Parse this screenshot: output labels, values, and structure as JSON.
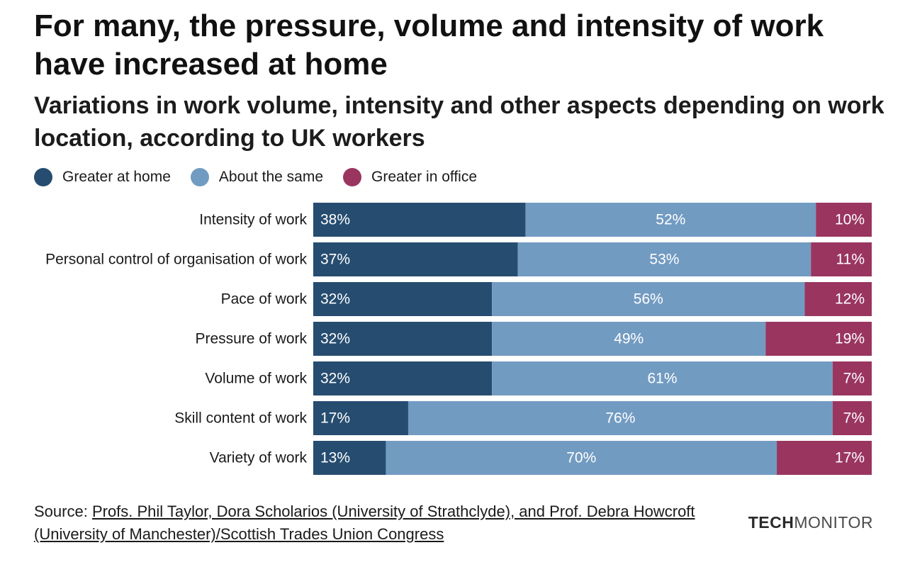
{
  "header": {
    "title": "For many, the pressure, volume and intensity of work have increased at home",
    "subtitle": "Variations in work volume, intensity and other aspects depending on work location, according to UK workers"
  },
  "legend": [
    {
      "label": "Greater at home",
      "color": "#264d70"
    },
    {
      "label": "About the same",
      "color": "#729bc2"
    },
    {
      "label": "Greater in office",
      "color": "#9a3560"
    }
  ],
  "chart_data": {
    "type": "bar",
    "orientation": "horizontal",
    "stacked": true,
    "normalized": true,
    "value_suffix": "%",
    "categories": [
      "Intensity of work",
      "Personal control of organisation of work",
      "Pace of work",
      "Pressure of work",
      "Volume of work",
      "Skill content of work",
      "Variety of work"
    ],
    "series": [
      {
        "name": "Greater at home",
        "color": "#264d70",
        "values": [
          38,
          37,
          32,
          32,
          32,
          17,
          13
        ]
      },
      {
        "name": "About the same",
        "color": "#729bc2",
        "values": [
          52,
          53,
          56,
          49,
          61,
          76,
          70
        ]
      },
      {
        "name": "Greater in office",
        "color": "#9a3560",
        "values": [
          10,
          11,
          12,
          19,
          7,
          7,
          17
        ]
      }
    ],
    "xlim": [
      0,
      100
    ],
    "grid": false,
    "legend_position": "top-left"
  },
  "footer": {
    "source_prefix": "Source: ",
    "source_text": "Profs. Phil Taylor, Dora Scholarios (University of Strathclyde), and Prof. Debra Howcroft (University of Manchester)/Scottish Trades Union Congress",
    "brand_strong": "TECH",
    "brand_light": "MONITOR"
  }
}
